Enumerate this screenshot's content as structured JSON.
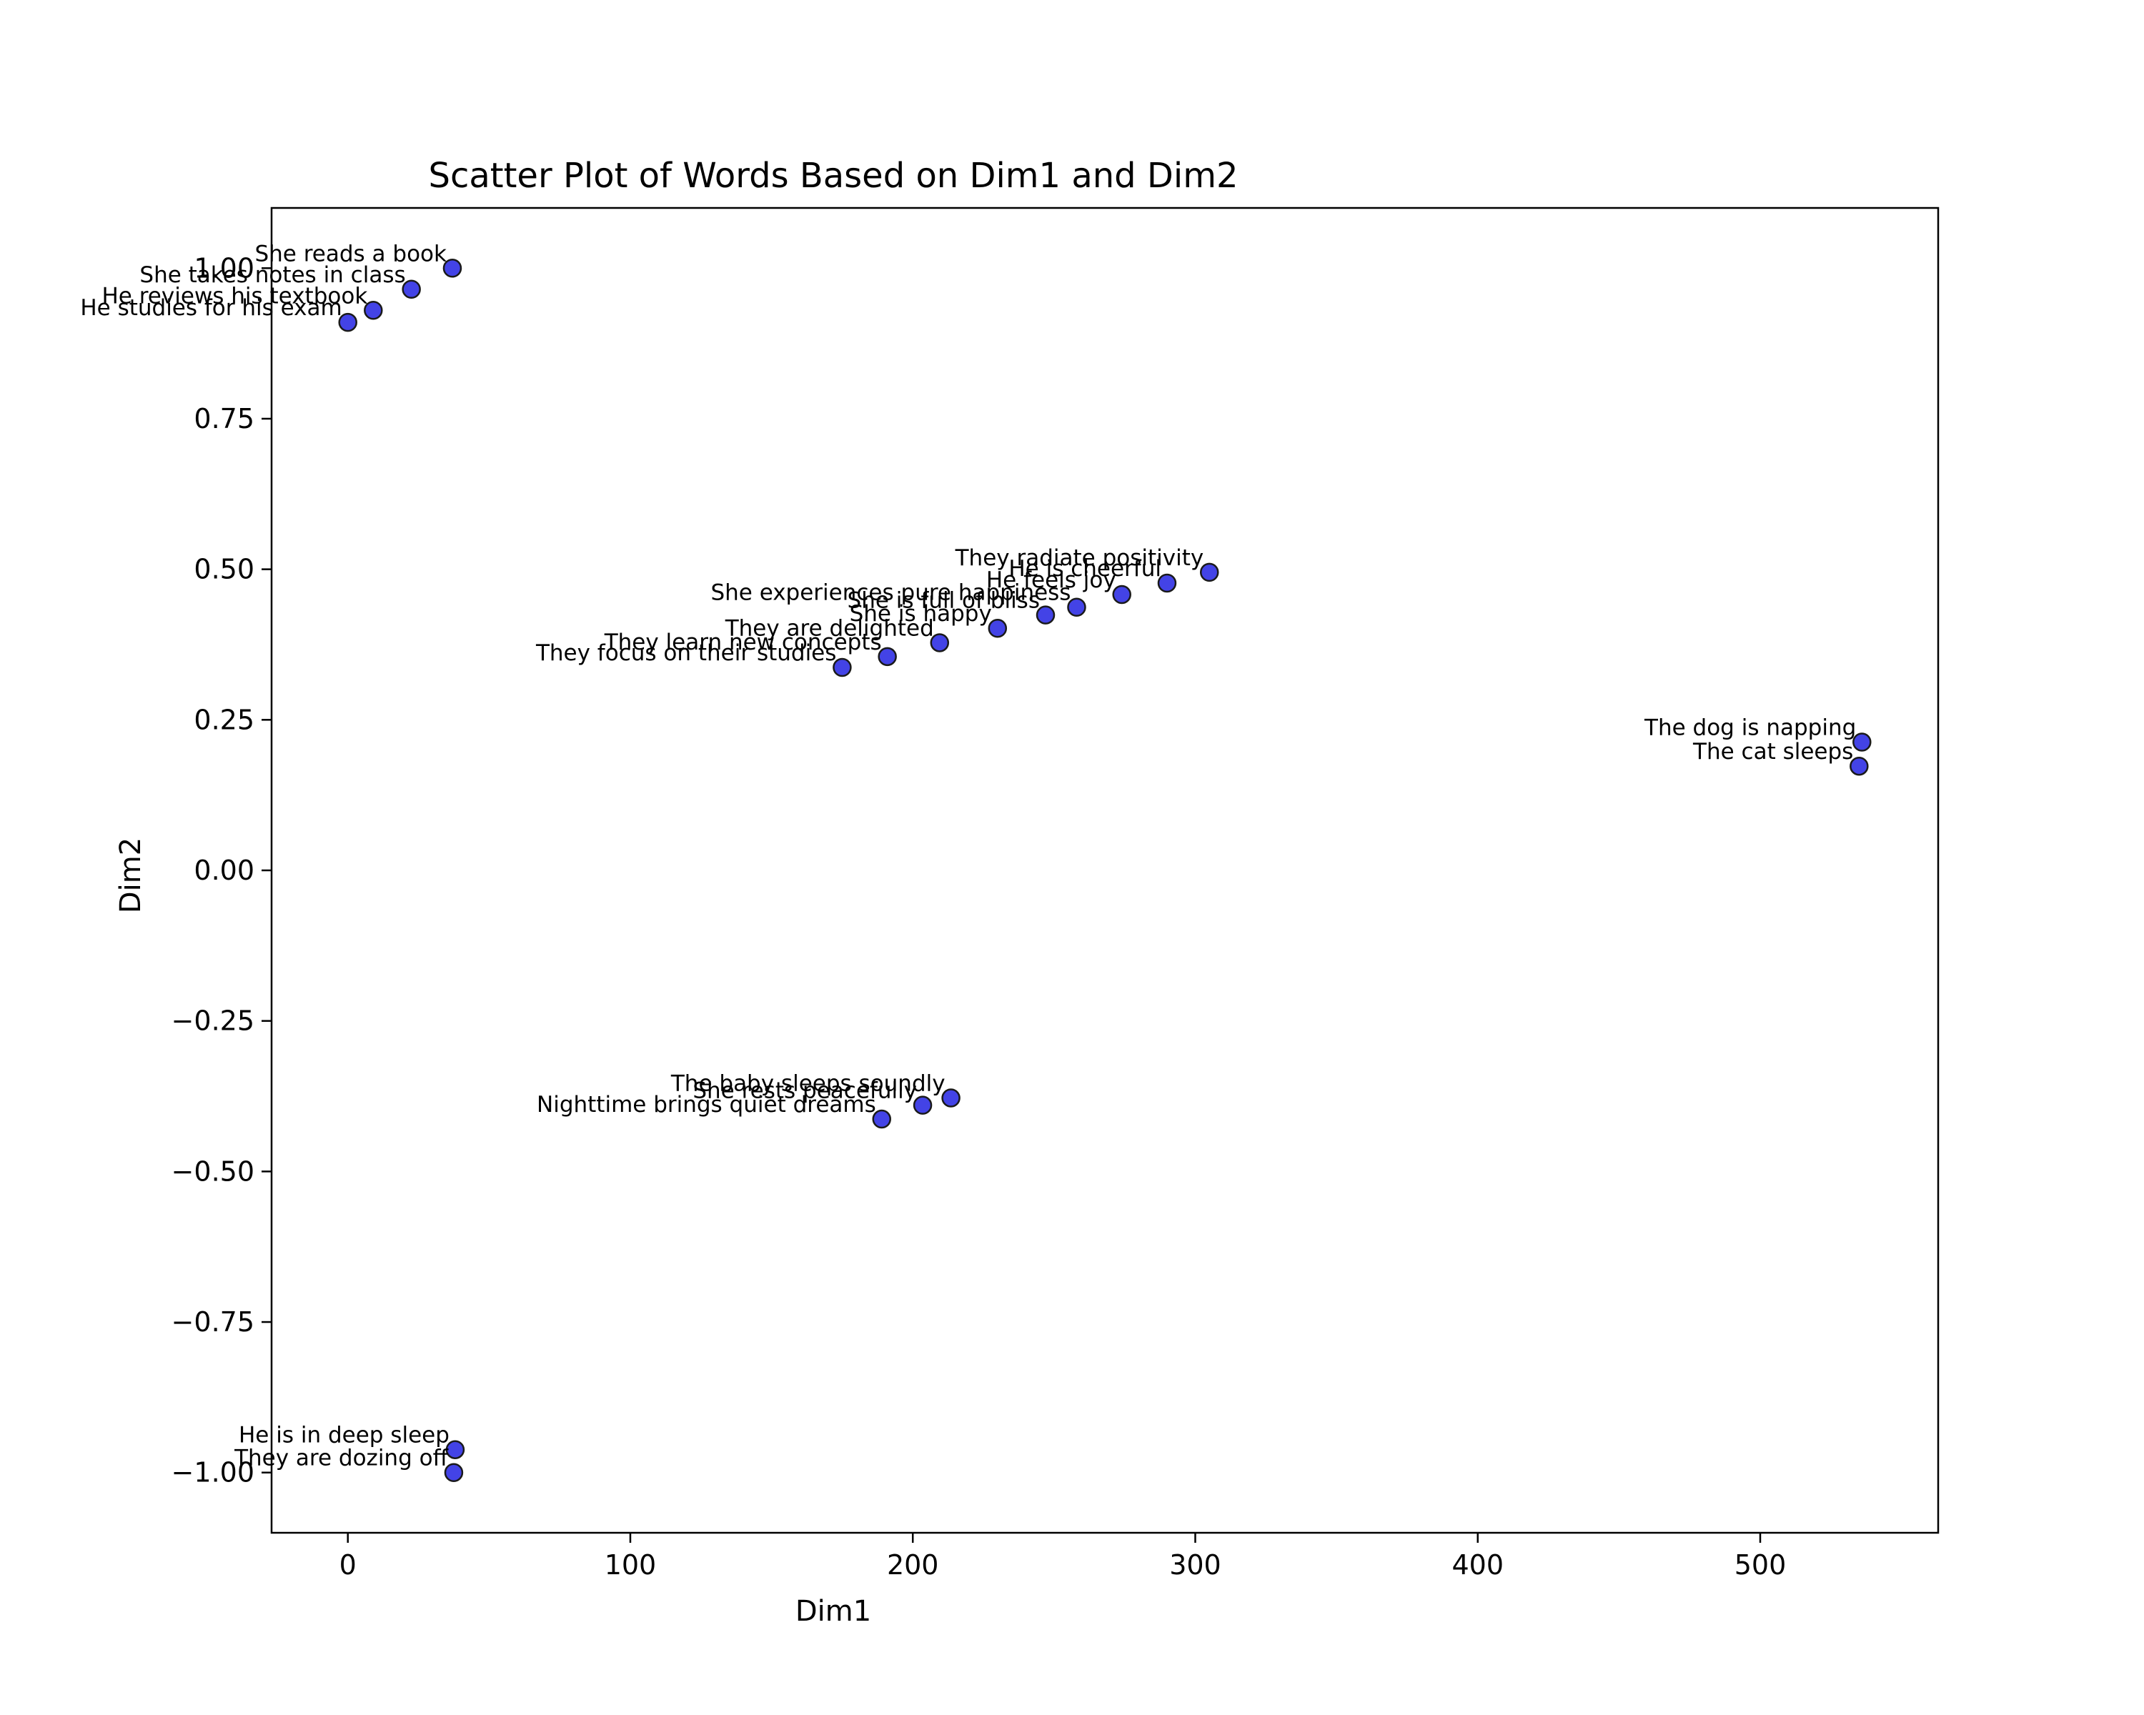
{
  "chart_data": {
    "type": "scatter",
    "title": "Scatter Plot of Words Based on Dim1 and Dim2",
    "xlabel": "Dim1",
    "ylabel": "Dim2",
    "xlim": [
      -27,
      563
    ],
    "ylim": [
      -1.1,
      1.1
    ],
    "xticks": [
      0,
      100,
      200,
      300,
      400,
      500
    ],
    "xtick_labels": [
      "0",
      "100",
      "200",
      "300",
      "400",
      "500"
    ],
    "yticks": [
      1.0,
      0.75,
      0.5,
      0.25,
      0.0,
      -0.25,
      -0.5,
      -0.75,
      -1.0
    ],
    "ytick_labels": [
      "1.00",
      "0.75",
      "0.50",
      "0.25",
      "0.00",
      "−0.25",
      "−0.50",
      "−0.75",
      "−1.00"
    ],
    "grid": false,
    "marker_color": "#4343e6",
    "marker_edge_color": "#1a1a1a",
    "points": [
      {
        "label": "She reads a book",
        "x": 37,
        "y": 1.0
      },
      {
        "label": "She takes notes in class",
        "x": 22.5,
        "y": 0.965
      },
      {
        "label": "He reviews his textbook",
        "x": 9,
        "y": 0.93
      },
      {
        "label": "He studies for his exam",
        "x": 0,
        "y": 0.91
      },
      {
        "label": "They radiate positivity",
        "x": 305,
        "y": 0.495
      },
      {
        "label": "He is cheerful",
        "x": 290,
        "y": 0.477
      },
      {
        "label": "He feels joy",
        "x": 274,
        "y": 0.458
      },
      {
        "label": "She experiences pure happiness",
        "x": 258,
        "y": 0.437
      },
      {
        "label": "She is full of bliss",
        "x": 247,
        "y": 0.424
      },
      {
        "label": "She is happy",
        "x": 230,
        "y": 0.402
      },
      {
        "label": "They are delighted",
        "x": 209.5,
        "y": 0.378
      },
      {
        "label": "They learn new concepts",
        "x": 191,
        "y": 0.355
      },
      {
        "label": "They focus on their studies",
        "x": 175,
        "y": 0.337
      },
      {
        "label": "The dog is napping",
        "x": 536,
        "y": 0.213
      },
      {
        "label": "The cat sleeps",
        "x": 535,
        "y": 0.173
      },
      {
        "label": "The baby sleeps soundly",
        "x": 213.5,
        "y": -0.378
      },
      {
        "label": "She rests peacefully",
        "x": 203.5,
        "y": -0.39
      },
      {
        "label": "Nighttime brings quiet dreams",
        "x": 189,
        "y": -0.413
      },
      {
        "label": "He is in deep sleep",
        "x": 38,
        "y": -0.962
      },
      {
        "label": "They are dozing off",
        "x": 37.5,
        "y": -1.0
      }
    ]
  }
}
